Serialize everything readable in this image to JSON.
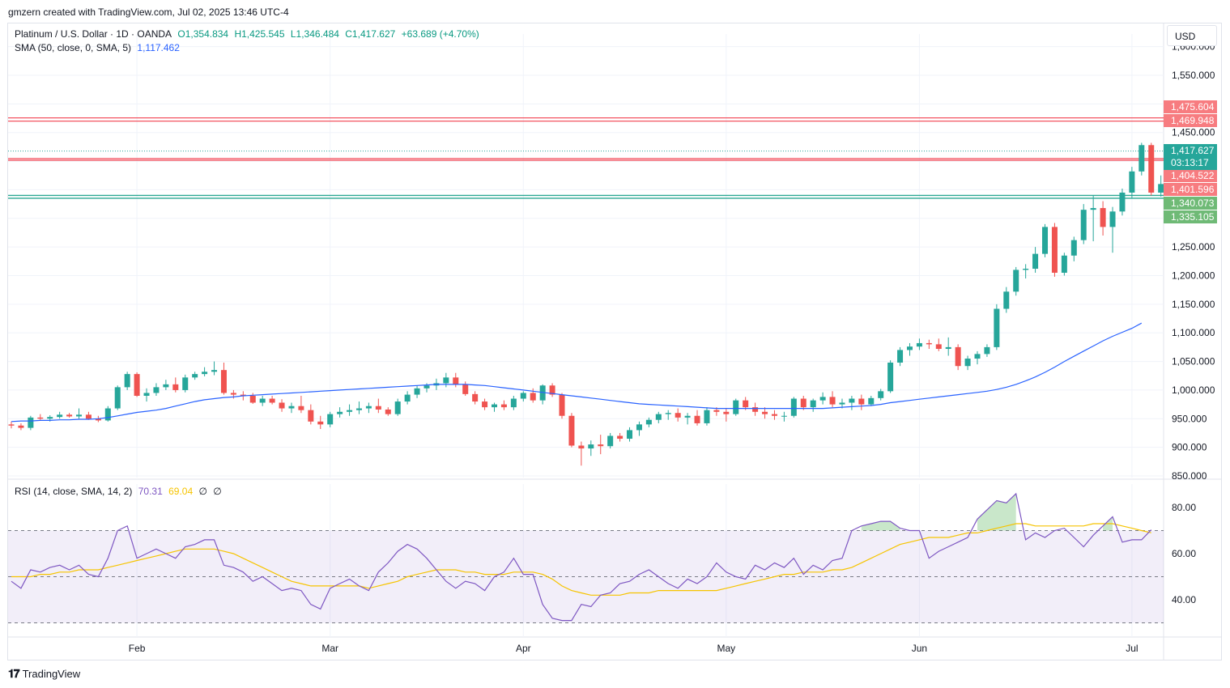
{
  "header": {
    "credit": "gmzern created with TradingView.com, Jul 02, 2025 13:46 UTC-4"
  },
  "legend": {
    "title": "Platinum / U.S. Dollar · 1D · OANDA",
    "open": "O1,354.834",
    "high": "H1,425.545",
    "low": "L1,346.484",
    "close": "C1,417.627",
    "change": "+63.689 (+4.70%)",
    "sma_label": "SMA (50, close, 0, SMA, 5)",
    "sma_value": "1,117.462",
    "rsi_label": "RSI (14, close, SMA, 14, 2)",
    "rsi_value": "70.31",
    "rsi_ma_value": "69.04",
    "rsi_extra1": "∅",
    "rsi_extra2": "∅"
  },
  "currency": "USD",
  "footer": {
    "brand": "TradingView",
    "logo_icon": "tradingview-logo-icon"
  },
  "colors": {
    "up": "#26a69a",
    "down": "#ef5350",
    "sma": "#2962ff",
    "rsi": "#7e57c2",
    "rsi_ma": "#f6c400",
    "hline_red": "#f23645",
    "hline_green": "#089981"
  },
  "chart_data": [
    {
      "type": "candlestick",
      "ylim": [
        850,
        1600
      ],
      "y_ticks": [
        "850.000",
        "900.000",
        "950.000",
        "1,000.000",
        "1,050.000",
        "1,100.000",
        "1,150.000",
        "1,200.000",
        "1,250.000",
        "1,300.000",
        "1,350.000",
        "1,400.000",
        "1,450.000",
        "1,500.000",
        "1,550.000",
        "1,600.000"
      ],
      "x_ticks": [
        {
          "label": "Feb",
          "index": 13
        },
        {
          "label": "Mar",
          "index": 33
        },
        {
          "label": "Apr",
          "index": 53
        },
        {
          "label": "May",
          "index": 74
        },
        {
          "label": "Jun",
          "index": 94
        },
        {
          "label": "Jul",
          "index": 116
        }
      ],
      "candles": [
        [
          940,
          945,
          933,
          938
        ],
        [
          938,
          942,
          930,
          934
        ],
        [
          934,
          955,
          930,
          952
        ],
        [
          952,
          958,
          948,
          950
        ],
        [
          950,
          956,
          945,
          953
        ],
        [
          953,
          962,
          950,
          957
        ],
        [
          957,
          960,
          952,
          954
        ],
        [
          954,
          968,
          950,
          957
        ],
        [
          957,
          962,
          948,
          950
        ],
        [
          950,
          955,
          944,
          947
        ],
        [
          947,
          972,
          945,
          968
        ],
        [
          968,
          1008,
          965,
          1005
        ],
        [
          1005,
          1032,
          1000,
          1028
        ],
        [
          1028,
          1031,
          988,
          990
        ],
        [
          990,
          1003,
          980,
          995
        ],
        [
          995,
          1012,
          990,
          1005
        ],
        [
          1005,
          1018,
          1000,
          1010
        ],
        [
          1010,
          1022,
          996,
          1000
        ],
        [
          1000,
          1027,
          996,
          1022
        ],
        [
          1022,
          1032,
          1018,
          1028
        ],
        [
          1028,
          1040,
          1024,
          1032
        ],
        [
          1032,
          1050,
          1026,
          1035
        ],
        [
          1035,
          1048,
          992,
          995
        ],
        [
          995,
          1000,
          985,
          992
        ],
        [
          992,
          998,
          982,
          990
        ],
        [
          990,
          995,
          976,
          978
        ],
        [
          978,
          990,
          972,
          985
        ],
        [
          985,
          990,
          975,
          978
        ],
        [
          978,
          984,
          962,
          968
        ],
        [
          968,
          978,
          960,
          972
        ],
        [
          972,
          990,
          960,
          965
        ],
        [
          965,
          975,
          940,
          945
        ],
        [
          945,
          955,
          932,
          940
        ],
        [
          940,
          962,
          935,
          958
        ],
        [
          958,
          970,
          952,
          962
        ],
        [
          962,
          975,
          955,
          965
        ],
        [
          965,
          980,
          958,
          968
        ],
        [
          968,
          978,
          960,
          972
        ],
        [
          972,
          985,
          960,
          966
        ],
        [
          966,
          970,
          955,
          958
        ],
        [
          958,
          985,
          955,
          980
        ],
        [
          980,
          998,
          975,
          992
        ],
        [
          992,
          1008,
          986,
          1003
        ],
        [
          1003,
          1012,
          996,
          1008
        ],
        [
          1008,
          1020,
          1000,
          1012
        ],
        [
          1012,
          1030,
          1005,
          1022
        ],
        [
          1022,
          1030,
          1005,
          1010
        ],
        [
          1010,
          1015,
          990,
          993
        ],
        [
          993,
          998,
          975,
          980
        ],
        [
          980,
          985,
          965,
          970
        ],
        [
          970,
          978,
          962,
          975
        ],
        [
          975,
          982,
          965,
          970
        ],
        [
          970,
          990,
          965,
          985
        ],
        [
          985,
          998,
          980,
          995
        ],
        [
          995,
          1003,
          978,
          982
        ],
        [
          982,
          1010,
          975,
          1008
        ],
        [
          1008,
          1012,
          988,
          992
        ],
        [
          992,
          995,
          950,
          955
        ],
        [
          955,
          960,
          900,
          903
        ],
        [
          903,
          910,
          868,
          898
        ],
        [
          898,
          912,
          885,
          905
        ],
        [
          905,
          922,
          888,
          902
        ],
        [
          902,
          925,
          898,
          920
        ],
        [
          920,
          925,
          910,
          915
        ],
        [
          915,
          935,
          910,
          930
        ],
        [
          930,
          945,
          920,
          940
        ],
        [
          940,
          952,
          935,
          948
        ],
        [
          948,
          962,
          942,
          958
        ],
        [
          958,
          965,
          948,
          960
        ],
        [
          960,
          968,
          945,
          952
        ],
        [
          952,
          960,
          940,
          955
        ],
        [
          955,
          965,
          938,
          942
        ],
        [
          942,
          970,
          938,
          965
        ],
        [
          965,
          970,
          955,
          962
        ],
        [
          962,
          968,
          945,
          958
        ],
        [
          958,
          985,
          955,
          982
        ],
        [
          982,
          988,
          965,
          970
        ],
        [
          970,
          978,
          955,
          962
        ],
        [
          962,
          970,
          950,
          958
        ],
        [
          958,
          965,
          948,
          955
        ],
        [
          955,
          962,
          945,
          955
        ],
        [
          955,
          988,
          952,
          985
        ],
        [
          985,
          990,
          965,
          970
        ],
        [
          970,
          985,
          962,
          982
        ],
        [
          982,
          996,
          975,
          988
        ],
        [
          988,
          998,
          970,
          975
        ],
        [
          975,
          985,
          968,
          978
        ],
        [
          978,
          990,
          965,
          985
        ],
        [
          985,
          992,
          965,
          975
        ],
        [
          975,
          990,
          972,
          986
        ],
        [
          986,
          1002,
          982,
          998
        ],
        [
          998,
          1052,
          995,
          1048
        ],
        [
          1048,
          1075,
          1042,
          1070
        ],
        [
          1070,
          1082,
          1060,
          1076
        ],
        [
          1076,
          1090,
          1070,
          1082
        ],
        [
          1082,
          1088,
          1072,
          1080
        ],
        [
          1080,
          1090,
          1068,
          1072
        ],
        [
          1072,
          1092,
          1060,
          1075
        ],
        [
          1075,
          1080,
          1035,
          1042
        ],
        [
          1042,
          1060,
          1035,
          1055
        ],
        [
          1055,
          1068,
          1045,
          1063
        ],
        [
          1063,
          1080,
          1058,
          1075
        ],
        [
          1075,
          1150,
          1070,
          1142
        ],
        [
          1142,
          1180,
          1135,
          1172
        ],
        [
          1172,
          1215,
          1165,
          1210
        ],
        [
          1210,
          1220,
          1195,
          1212
        ],
        [
          1212,
          1250,
          1205,
          1238
        ],
        [
          1238,
          1290,
          1232,
          1285
        ],
        [
          1285,
          1292,
          1198,
          1205
        ],
        [
          1205,
          1240,
          1200,
          1235
        ],
        [
          1235,
          1268,
          1225,
          1262
        ],
        [
          1262,
          1325,
          1255,
          1315
        ],
        [
          1315,
          1340,
          1260,
          1318
        ],
        [
          1318,
          1330,
          1270,
          1285
        ],
        [
          1285,
          1320,
          1240,
          1312
        ],
        [
          1312,
          1352,
          1305,
          1345
        ],
        [
          1345,
          1390,
          1335,
          1382
        ],
        [
          1382,
          1432,
          1375,
          1428
        ],
        [
          1428,
          1432,
          1340,
          1345
        ],
        [
          1345,
          1375,
          1338,
          1360
        ],
        [
          1360,
          1382,
          1345,
          1362
        ],
        [
          1354.834,
          1425.545,
          1346.484,
          1417.627
        ]
      ],
      "sma": [
        945,
        946,
        946,
        947,
        947,
        948,
        948,
        949,
        949,
        950,
        952,
        955,
        958,
        961,
        963,
        965,
        968,
        972,
        976,
        980,
        983,
        985,
        987,
        988,
        990,
        991,
        992,
        993,
        994,
        995,
        996,
        997,
        998,
        999,
        1000,
        1001,
        1002,
        1003,
        1004,
        1005,
        1006,
        1007,
        1008,
        1009,
        1010,
        1010,
        1010,
        1010,
        1009,
        1008,
        1006,
        1004,
        1002,
        1000,
        998,
        996,
        994,
        992,
        990,
        988,
        986,
        984,
        982,
        980,
        978,
        976,
        975,
        974,
        973,
        972,
        971,
        970,
        969,
        968,
        968,
        968,
        968,
        968,
        968,
        968,
        968,
        968,
        968,
        968,
        968,
        969,
        970,
        971,
        972,
        973,
        975,
        978,
        980,
        982,
        984,
        986,
        988,
        990,
        992,
        994,
        996,
        998,
        1001,
        1005,
        1010,
        1016,
        1023,
        1031,
        1040,
        1050,
        1059,
        1068,
        1077,
        1086,
        1094,
        1101,
        1108,
        1117
      ],
      "hlines": [
        {
          "value": 1475.604,
          "label": "1,475.604",
          "color": "#f23645"
        },
        {
          "value": 1469.948,
          "label": "1,469.948",
          "color": "#f23645"
        },
        {
          "value": 1404.522,
          "label": "1,404.522",
          "color": "#f23645"
        },
        {
          "value": 1401.596,
          "label": "1,401.596",
          "color": "#f23645"
        },
        {
          "value": 1340.073,
          "label": "1,340.073",
          "color": "#089981"
        },
        {
          "value": 1335.105,
          "label": "1,335.105",
          "color": "#089981"
        }
      ],
      "last_price": {
        "value": 1417.627,
        "label": "1,417.627",
        "countdown": "03:13:17"
      }
    },
    {
      "type": "line",
      "ylim": [
        26,
        90
      ],
      "y_ticks": [
        "40.00",
        "60.00",
        "80.00"
      ],
      "bands": [
        30,
        50,
        70
      ],
      "rsi": [
        48,
        45,
        53,
        52,
        54,
        55,
        53,
        55,
        51,
        50,
        58,
        70,
        72,
        58,
        60,
        62,
        60,
        58,
        63,
        64,
        66,
        66,
        55,
        54,
        52,
        48,
        50,
        47,
        44,
        45,
        44,
        38,
        36,
        45,
        47,
        49,
        46,
        44,
        52,
        56,
        61,
        64,
        62,
        58,
        53,
        48,
        45,
        48,
        47,
        44,
        50,
        52,
        58,
        51,
        51,
        38,
        32,
        31,
        31,
        38,
        37,
        42,
        43,
        47,
        48,
        51,
        53,
        50,
        47,
        45,
        49,
        47,
        50,
        56,
        52,
        50,
        49,
        55,
        53,
        56,
        54,
        58,
        51,
        55,
        53,
        57,
        58,
        70,
        72,
        73,
        74,
        74,
        71,
        70,
        70,
        58,
        61,
        63,
        65,
        67,
        75,
        79,
        83,
        82,
        86,
        66,
        69,
        67,
        70,
        71,
        67,
        63,
        68,
        72,
        76,
        65,
        66,
        66,
        70.31
      ],
      "rsi_ma": [
        50,
        50,
        50,
        51,
        51,
        52,
        52,
        53,
        53,
        53,
        54,
        55,
        56,
        57,
        58,
        59,
        60,
        61,
        62,
        62,
        62,
        62,
        61,
        60,
        58,
        56,
        54,
        52,
        50,
        48,
        47,
        46,
        46,
        46,
        46,
        46,
        46,
        45,
        46,
        47,
        48,
        50,
        51,
        52,
        53,
        53,
        53,
        52,
        52,
        51,
        51,
        51,
        52,
        52,
        52,
        51,
        49,
        46,
        44,
        43,
        42,
        42,
        42,
        42,
        43,
        43,
        43,
        44,
        44,
        44,
        44,
        44,
        44,
        44,
        45,
        46,
        47,
        48,
        49,
        50,
        51,
        51,
        52,
        52,
        52,
        53,
        53,
        54,
        56,
        58,
        60,
        62,
        64,
        65,
        66,
        67,
        67,
        67,
        68,
        69,
        69,
        70,
        71,
        72,
        73,
        73,
        72,
        72,
        72,
        72,
        72,
        72,
        73,
        73,
        73,
        72,
        71,
        70,
        69.04
      ]
    }
  ]
}
